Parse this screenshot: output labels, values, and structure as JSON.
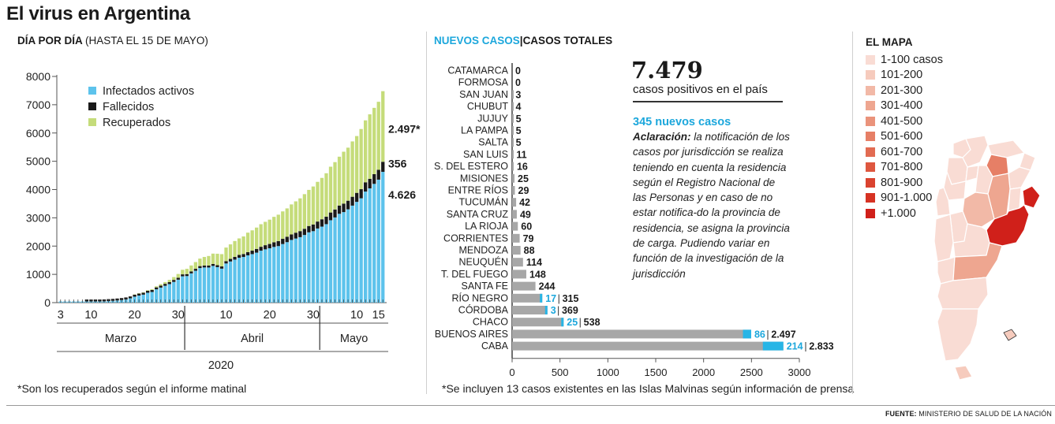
{
  "title": "El virus en Argentina",
  "left_panel": {
    "heading": "DÍA POR DÍA",
    "heading_note": "(HASTA EL 15 DE MAYO)",
    "footnote": "*Son los recuperados según el informe matinal"
  },
  "middle_panel": {
    "heading_a": "NUEVOS CASOS",
    "heading_sep": "|",
    "heading_b": "CASOS TOTALES",
    "total_value": "7.479",
    "total_label": "casos positivos en el país",
    "new_cases_label": "345 nuevos casos",
    "note_lead": "Aclaración:",
    "note_text": "la notificación de los casos por jurisdicción se realiza teniendo en cuenta la residencia según el Registro Nacional de las Personas y en caso de no estar notifica-do la provincia de residencia, se asigna la provincia de carga. Pudiendo variar en función de la investigación de la jurisdicción",
    "footnote": "*Se incluyen 13 casos existentes en las Islas Malvinas según información de prensa"
  },
  "map_panel": {
    "heading": "EL MAPA",
    "legend": [
      {
        "label": "1-100 casos",
        "color": "#f9dcd4"
      },
      {
        "label": "101-200",
        "color": "#f6cbbd"
      },
      {
        "label": "201-300",
        "color": "#f2b9a7"
      },
      {
        "label": "301-400",
        "color": "#eea690"
      },
      {
        "label": "401-500",
        "color": "#ea937b"
      },
      {
        "label": "501-600",
        "color": "#e67f66"
      },
      {
        "label": "601-700",
        "color": "#e26b52"
      },
      {
        "label": "701-800",
        "color": "#de573f"
      },
      {
        "label": "801-900",
        "color": "#da432f"
      },
      {
        "label": "901-1.000",
        "color": "#d63223"
      },
      {
        "label": "+1.000",
        "color": "#d0201a"
      }
    ]
  },
  "source": {
    "label": "FUENTE:",
    "text": "MINISTERIO DE SALUD DE LA NACIÓN"
  },
  "colors": {
    "active": "#5dc3ec",
    "deaths": "#1a1a1a",
    "recovered": "#c5dc7a",
    "bar_total": "#a7a7a7",
    "bar_new": "#27b5e6",
    "accent": "#1ca7dc"
  },
  "chart_data": [
    {
      "type": "bar",
      "stacked": true,
      "x_start": "2020-03-03",
      "x_end": "2020-05-15",
      "x_ticks": [
        "3",
        "10",
        "20",
        "30",
        "10",
        "20",
        "30",
        "10",
        "15"
      ],
      "month_labels": [
        "Marzo",
        "Abril",
        "Mayo"
      ],
      "year_label": "2020",
      "ylim": [
        0,
        8000
      ],
      "yticks": [
        "0",
        "1000",
        "2000",
        "3000",
        "4000",
        "5000",
        "6000",
        "7000",
        "8000"
      ],
      "grid": false,
      "legend_position": "top-left",
      "series": [
        {
          "name": "Infectados activos",
          "color": "#5dc3ec",
          "values": [
            1,
            1,
            2,
            8,
            11,
            15,
            16,
            20,
            27,
            30,
            45,
            54,
            63,
            76,
            91,
            114,
            151,
            210,
            250,
            282,
            349,
            377,
            470,
            532,
            596,
            656,
            734,
            812,
            931,
            940,
            1035,
            1127,
            1223,
            1244,
            1242,
            1299,
            1255,
            1202,
            1385,
            1456,
            1521,
            1587,
            1616,
            1672,
            1716,
            1768,
            1838,
            1885,
            1923,
            1970,
            2000,
            2072,
            2139,
            2217,
            2267,
            2316,
            2393,
            2486,
            2528,
            2622,
            2689,
            2776,
            2915,
            3013,
            3142,
            3203,
            3300,
            3431,
            3564,
            3690,
            3928,
            4042,
            4200,
            4350,
            4626
          ]
        },
        {
          "name": "Fallecidos",
          "color": "#1a1a1a",
          "values": [
            0,
            0,
            0,
            0,
            0,
            0,
            1,
            2,
            2,
            2,
            2,
            2,
            2,
            2,
            2,
            3,
            3,
            4,
            4,
            4,
            6,
            8,
            9,
            12,
            17,
            19,
            23,
            24,
            27,
            28,
            31,
            36,
            39,
            44,
            48,
            60,
            65,
            79,
            83,
            90,
            98,
            100,
            105,
            113,
            123,
            132,
            138,
            147,
            152,
            165,
            176,
            185,
            192,
            197,
            207,
            214,
            219,
            225,
            237,
            246,
            260,
            264,
            273,
            282,
            293,
            300,
            305,
            314,
            319,
            323,
            329,
            338,
            344,
            350,
            356
          ]
        },
        {
          "name": "Recuperados",
          "color": "#c5dc7a",
          "values": [
            0,
            0,
            0,
            0,
            0,
            0,
            0,
            0,
            0,
            0,
            0,
            0,
            0,
            0,
            0,
            0,
            3,
            10,
            12,
            15,
            20,
            28,
            38,
            52,
            62,
            80,
            100,
            132,
            162,
            186,
            210,
            238,
            265,
            302,
            338,
            365,
            405,
            435,
            480,
            515,
            560,
            585,
            620,
            690,
            718,
            755,
            798,
            826,
            860,
            900,
            935,
            970,
            1002,
            1060,
            1108,
            1158,
            1225,
            1277,
            1343,
            1404,
            1462,
            1536,
            1620,
            1675,
            1727,
            1835,
            1876,
            1957,
            2009,
            2128,
            2190,
            2280,
            2345,
            2404,
            2497
          ]
        }
      ],
      "end_labels": [
        "2.497*",
        "356",
        "4.626"
      ]
    },
    {
      "type": "bar",
      "orientation": "horizontal",
      "stacked": false,
      "xlim": [
        0,
        3000
      ],
      "xticks": [
        "0",
        "500",
        "1000",
        "1500",
        "2000",
        "2500",
        "3000"
      ],
      "categories": [
        "CATAMARCA",
        "FORMOSA",
        "SAN JUAN",
        "CHUBUT",
        "JUJUY",
        "LA PAMPA",
        "SALTA",
        "SAN LUIS",
        "S. DEL ESTERO",
        "MISIONES",
        "ENTRE RÍOS",
        "TUCUMÁN",
        "SANTA CRUZ",
        "LA RIOJA",
        "CORRIENTES",
        "MENDOZA",
        "NEUQUÉN",
        "T. DEL FUEGO",
        "SANTA FE",
        "RÍO NEGRO",
        "CÓRDOBA",
        "CHACO",
        "BUENOS AIRES",
        "CABA"
      ],
      "series": [
        {
          "name": "CASOS TOTALES",
          "values": [
            0,
            0,
            3,
            4,
            5,
            5,
            5,
            11,
            16,
            25,
            29,
            42,
            49,
            60,
            79,
            88,
            114,
            148,
            244,
            315,
            369,
            538,
            2497,
            2833
          ]
        },
        {
          "name": "NUEVOS CASOS",
          "values": [
            0,
            0,
            0,
            0,
            0,
            0,
            0,
            0,
            0,
            0,
            0,
            0,
            0,
            0,
            0,
            0,
            0,
            0,
            0,
            17,
            3,
            25,
            86,
            214
          ]
        }
      ],
      "total_labels": [
        "0",
        "0",
        "3",
        "4",
        "5",
        "5",
        "5",
        "11",
        "16",
        "25",
        "29",
        "42",
        "49",
        "60",
        "79",
        "88",
        "114",
        "148",
        "244",
        "315",
        "369",
        "538",
        "2.497",
        "2.833"
      ],
      "new_labels": [
        "",
        "",
        "",
        "",
        "",
        "",
        "",
        "",
        "",
        "",
        "",
        "",
        "",
        "",
        "",
        "",
        "",
        "",
        "",
        "17",
        "3",
        "25",
        "86",
        "214"
      ]
    }
  ]
}
